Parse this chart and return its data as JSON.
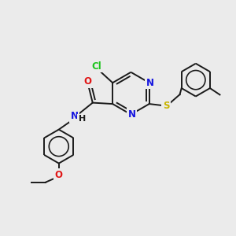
{
  "background_color": "#ebebeb",
  "bond_color": "#1a1a1a",
  "atom_colors": {
    "Cl": "#1ec41e",
    "N": "#1414e0",
    "O": "#e01414",
    "S": "#c8b400",
    "H": "#1a1a1a",
    "C": "#1a1a1a"
  },
  "figsize": [
    3.0,
    3.0
  ],
  "dpi": 100
}
